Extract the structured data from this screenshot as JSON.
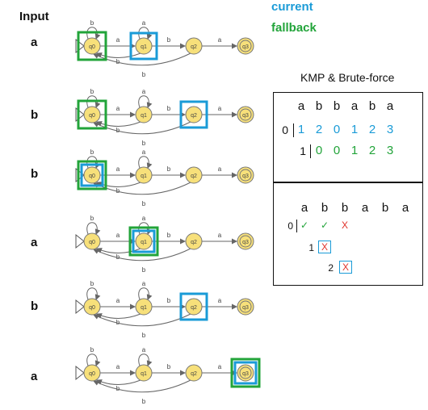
{
  "labels": {
    "input_header": "Input",
    "legend_current": "current",
    "legend_fallback": "fallback",
    "table_title": "KMP & Brute-force"
  },
  "colors": {
    "current": "#1a9bd7",
    "fallback": "#22a43a",
    "mismatch": "#e0332b",
    "state_fill": "#f7e07a"
  },
  "automaton": {
    "states": [
      "q0",
      "q1",
      "q2",
      "q3"
    ],
    "final_state": "q3",
    "edges": [
      {
        "from": "q0",
        "to": "q0",
        "label": "b"
      },
      {
        "from": "q0",
        "to": "q1",
        "label": "a"
      },
      {
        "from": "q1",
        "to": "q1",
        "label": "a"
      },
      {
        "from": "q1",
        "to": "q2",
        "label": "b"
      },
      {
        "from": "q1",
        "to": "q0",
        "label": "b"
      },
      {
        "from": "q2",
        "to": "q3",
        "label": "a"
      },
      {
        "from": "q2",
        "to": "q0",
        "label": "b"
      }
    ]
  },
  "steps": [
    {
      "input": "a",
      "current": "q1",
      "fallback": "q0"
    },
    {
      "input": "b",
      "current": "q2",
      "fallback": "q0"
    },
    {
      "input": "b",
      "current": "q0",
      "fallback": "q0"
    },
    {
      "input": "a",
      "current": "q1",
      "fallback": "q1"
    },
    {
      "input": "b",
      "current": "q2",
      "fallback": null
    },
    {
      "input": "a",
      "current": "q3",
      "fallback": "q3"
    }
  ],
  "kmp_table": {
    "pattern": [
      "a",
      "b",
      "b",
      "a",
      "b",
      "a"
    ],
    "row1_index": "0",
    "row1_values": [
      "1",
      "2",
      "0",
      "1",
      "2",
      "3"
    ],
    "row2_index": "1",
    "row2_values": [
      "0",
      "0",
      "1",
      "2",
      "3"
    ]
  },
  "brute_table": {
    "pattern": [
      "a",
      "b",
      "b",
      "a",
      "b",
      "a"
    ],
    "row0_index": "0",
    "row0_marks": [
      "✓",
      "✓",
      "X"
    ],
    "row1_index": "1",
    "row1_mark": "X",
    "row2_index": "2",
    "row2_mark": "X"
  }
}
